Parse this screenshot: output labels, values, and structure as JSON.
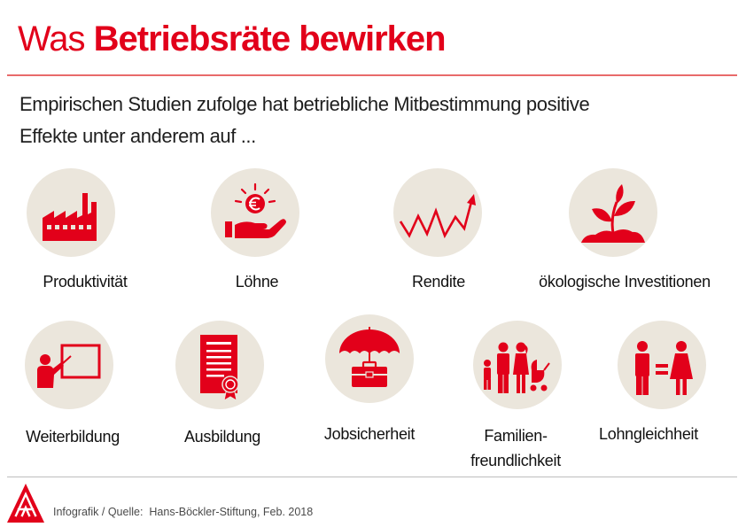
{
  "title": {
    "light": "Was",
    "bold": "Betriebsräte bewirken"
  },
  "intro": {
    "line1": "Empirischen Studien zufolge hat betriebliche Mitbestimmung positive",
    "line2": "Effekte unter anderem auf ..."
  },
  "items": [
    {
      "icon": "factory-icon",
      "lines": [
        "Produktivität"
      ]
    },
    {
      "icon": "hand-with-euro-coin-icon",
      "lines": [
        "Löhne"
      ]
    },
    {
      "icon": "rising-zigzag-arrow-icon",
      "lines": [
        "Rendite"
      ]
    },
    {
      "icon": "seedling-icon",
      "lines": [
        "ökologische Investitionen"
      ]
    },
    {
      "icon": "teacher-at-board-icon",
      "lines": [
        "Weiterbildung"
      ]
    },
    {
      "icon": "certificate-icon",
      "lines": [
        "Ausbildung"
      ]
    },
    {
      "icon": "umbrella-briefcase-icon",
      "lines": [
        "Jobsicherheit"
      ]
    },
    {
      "icon": "family-icon",
      "lines": [
        "Familien-",
        "freundlichkeit"
      ]
    },
    {
      "icon": "man-equals-woman-icon",
      "lines": [
        "Lohngleichheit"
      ]
    }
  ],
  "footer": {
    "source": "Infografik / Quelle:  Hans-Böckler-Stiftung, Feb. 2018"
  },
  "logo": {
    "icon": "ig-metall-logo"
  },
  "colors": {
    "accent": "#e2001a",
    "circle": "#ebe6dc",
    "text": "#1e1e1e"
  }
}
